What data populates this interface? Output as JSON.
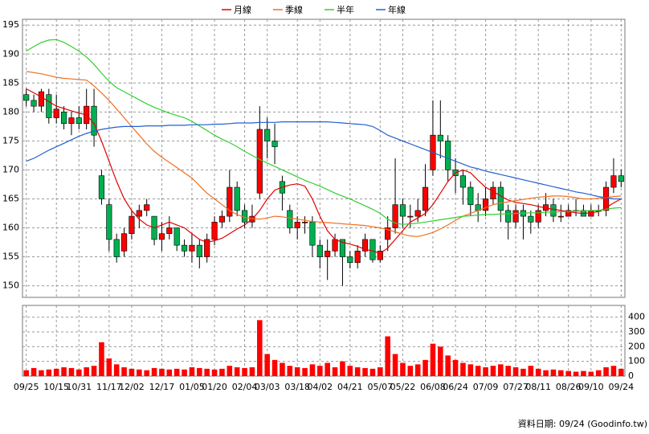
{
  "chart_data": {
    "type": "candlestick",
    "legend": "top",
    "grid": true,
    "categories": [
      "09/25",
      null,
      null,
      null,
      "10/15",
      null,
      null,
      "10/31",
      null,
      null,
      null,
      "11/17",
      null,
      null,
      "12/02",
      null,
      null,
      null,
      "12/17",
      null,
      null,
      null,
      "01/05",
      null,
      null,
      "01/20",
      null,
      null,
      null,
      "02/04",
      null,
      null,
      "03/03",
      null,
      null,
      null,
      "03/18",
      null,
      null,
      "04/02",
      null,
      null,
      null,
      "04/21",
      null,
      null,
      null,
      "05/07",
      null,
      null,
      "05/22",
      null,
      null,
      null,
      "06/08",
      null,
      null,
      "06/24",
      null,
      null,
      null,
      "07/09",
      null,
      null,
      null,
      "07/27",
      null,
      null,
      "08/11",
      null,
      null,
      null,
      "08/26",
      null,
      null,
      "09/10",
      null,
      null,
      null,
      "09/24"
    ],
    "open": [
      183,
      182,
      181,
      183,
      179,
      180,
      178,
      179,
      178,
      181,
      169,
      164,
      158,
      156,
      159,
      162,
      163,
      162,
      158,
      159,
      160,
      157,
      156,
      157,
      155,
      158,
      161,
      162,
      167,
      163,
      161,
      166,
      177,
      175,
      168,
      163,
      160,
      161,
      161,
      157,
      155,
      156,
      158,
      155,
      154,
      156,
      158,
      154.5,
      158,
      160,
      164,
      162,
      162,
      163,
      170,
      176,
      175,
      170,
      169,
      167,
      164,
      163,
      165,
      167,
      163,
      161,
      163,
      162,
      161,
      163,
      164,
      162,
      162,
      163,
      163,
      162,
      163,
      163,
      167,
      169
    ],
    "high": [
      184,
      183,
      184,
      184,
      183,
      181,
      180,
      181,
      184,
      184,
      170,
      165,
      159,
      160,
      163,
      164,
      165,
      162,
      161,
      162,
      160,
      158,
      159,
      158,
      159,
      162,
      163,
      170,
      168,
      164,
      164,
      181,
      179,
      178,
      169,
      164,
      162,
      162,
      162,
      158,
      158,
      159,
      158,
      156,
      157,
      159,
      158,
      157,
      162,
      172,
      165,
      164,
      165,
      171,
      182,
      182,
      176,
      172,
      170,
      168,
      166,
      167,
      168,
      168,
      164,
      164,
      164,
      163,
      164,
      166,
      165,
      164,
      164,
      165,
      164,
      164,
      164,
      168,
      172,
      170
    ],
    "low": [
      181,
      180,
      180,
      178,
      178,
      177,
      176,
      177,
      177,
      174,
      164,
      156,
      154,
      155,
      158,
      160,
      162,
      157,
      156,
      158,
      156,
      155,
      154,
      153,
      154,
      157,
      160,
      161,
      162,
      160,
      160,
      165,
      172,
      171,
      163,
      159,
      158,
      159,
      155,
      153,
      151,
      155,
      150,
      153,
      153,
      155,
      154,
      154,
      156,
      159,
      160,
      160,
      161,
      162,
      169,
      172,
      168,
      166,
      164,
      162,
      161,
      162,
      164,
      161,
      158,
      160,
      158,
      159,
      160,
      162,
      161,
      161,
      162,
      162,
      162,
      162,
      162,
      162,
      166,
      167
    ],
    "close": [
      182,
      181,
      183.5,
      179,
      180.5,
      178,
      179,
      178,
      181,
      176,
      165,
      158,
      155,
      159,
      162,
      163,
      164,
      158,
      159,
      160,
      157,
      156,
      157,
      155,
      158,
      161,
      162,
      167,
      163,
      161,
      162,
      177,
      175,
      174,
      166,
      160,
      161,
      161,
      157,
      155,
      156,
      158,
      155,
      154,
      156,
      158,
      154.5,
      156,
      160,
      164,
      162,
      162,
      163,
      167,
      176,
      175,
      170,
      169,
      167,
      164,
      163,
      165,
      167,
      163,
      161,
      163,
      162,
      161,
      163,
      164,
      162,
      162,
      163,
      163,
      162,
      163,
      163,
      167,
      169,
      168
    ],
    "up_color": "#ff0000",
    "down_color": "#00b050",
    "ylim": [
      148,
      196
    ],
    "yticks": [
      150,
      155,
      160,
      165,
      170,
      175,
      180,
      185,
      190,
      195
    ],
    "series": [
      {
        "name": "月線",
        "color": "#e00000",
        "values": [
          184,
          183.3,
          182.6,
          181.8,
          181,
          180.6,
          180.2,
          179.8,
          179.5,
          178,
          175,
          171.5,
          168,
          165,
          163,
          161.5,
          160.5,
          160,
          160.5,
          161,
          160.5,
          160,
          159,
          158,
          157.5,
          157.8,
          158.2,
          159,
          159.8,
          160.5,
          161.5,
          163,
          165,
          166.5,
          167,
          167.4,
          167.6,
          167.2,
          165,
          162,
          159.5,
          158,
          157.5,
          157.2,
          156.8,
          156.3,
          156,
          155.6,
          156.5,
          158,
          159.5,
          161,
          161.7,
          162.5,
          164,
          166,
          168,
          169.5,
          170,
          169.5,
          168.2,
          167,
          166.3,
          165.5,
          164.8,
          164.4,
          164.2,
          164,
          163.7,
          163.4,
          163.2,
          163,
          162.8,
          162.6,
          162.5,
          162.6,
          162.8,
          163.5,
          164.3,
          165
        ]
      },
      {
        "name": "季線",
        "color": "#f07020",
        "values": [
          187,
          186.8,
          186.6,
          186.3,
          186,
          185.8,
          185.7,
          185.6,
          185.5,
          184.5,
          183.3,
          182,
          180.5,
          179,
          177.5,
          176,
          174.5,
          173.2,
          172.2,
          171.3,
          170.4,
          169.5,
          168.6,
          167.3,
          166,
          165,
          164,
          163,
          162.3,
          161.8,
          161.6,
          161.5,
          161.7,
          162,
          161.9,
          161.7,
          161.5,
          161.3,
          161.1,
          161,
          160.9,
          160.8,
          160.7,
          160.6,
          160.5,
          160.4,
          160.2,
          160,
          159.7,
          159.3,
          158.9,
          158.6,
          158.5,
          158.8,
          159.2,
          159.8,
          160.5,
          161.3,
          162,
          162.5,
          163,
          163.5,
          164,
          164.3,
          164.5,
          164.7,
          164.9,
          165.1,
          165.3,
          165.4,
          165.5,
          165.5,
          165.4,
          165.2,
          165,
          165,
          165.1,
          165.2,
          165.4,
          165.5
        ]
      },
      {
        "name": "半年",
        "color": "#30d030",
        "values": [
          190.5,
          191.3,
          192,
          192.4,
          192.5,
          192,
          191.3,
          190.5,
          189.5,
          188.2,
          186.7,
          185.3,
          184.2,
          183.5,
          182.8,
          182.1,
          181.4,
          180.8,
          180.3,
          179.8,
          179.4,
          179,
          178.4,
          177.6,
          176.8,
          176,
          175.3,
          174.7,
          174,
          173.2,
          172.5,
          171.8,
          171.2,
          170.6,
          170,
          169.4,
          168.8,
          168.2,
          167.7,
          167.2,
          166.6,
          166,
          165.5,
          165,
          164.4,
          163.8,
          163.2,
          162.5,
          161.5,
          160.8,
          160.6,
          160.7,
          160.8,
          161,
          161.2,
          161.4,
          161.6,
          161.8,
          162,
          162.1,
          162.2,
          162.3,
          162.3,
          162.4,
          162.4,
          162.5,
          162.5,
          162.6,
          162.6,
          162.7,
          162.7,
          162.8,
          162.8,
          162.9,
          162.9,
          163,
          163,
          163.2,
          163.4,
          163.5
        ]
      },
      {
        "name": "年線",
        "color": "#2060d0",
        "values": [
          171.5,
          172,
          172.7,
          173.4,
          174,
          174.6,
          175.2,
          175.8,
          176.3,
          176.7,
          177,
          177.2,
          177.4,
          177.5,
          177.5,
          177.5,
          177.6,
          177.6,
          177.6,
          177.7,
          177.7,
          177.7,
          177.8,
          177.8,
          177.8,
          177.9,
          177.9,
          178,
          178.1,
          178.1,
          178.1,
          178.2,
          178.2,
          178.2,
          178.3,
          178.3,
          178.3,
          178.3,
          178.3,
          178.3,
          178.3,
          178.2,
          178.1,
          178,
          177.9,
          177.8,
          177.5,
          176.8,
          176,
          175.5,
          175,
          174.5,
          174,
          173.5,
          173,
          172.5,
          172,
          171.5,
          171,
          170.5,
          170.2,
          169.8,
          169.5,
          169.2,
          168.9,
          168.6,
          168.3,
          168,
          167.7,
          167.4,
          167.1,
          166.8,
          166.5,
          166.2,
          166,
          165.7,
          165.4,
          165.2,
          165,
          165
        ]
      }
    ],
    "volume": {
      "color": "#ff0000",
      "ylim": [
        0,
        480
      ],
      "yticks": [
        0,
        100,
        200,
        300,
        400
      ],
      "values": [
        40,
        55,
        40,
        45,
        50,
        60,
        55,
        45,
        60,
        70,
        230,
        120,
        80,
        60,
        50,
        45,
        40,
        55,
        50,
        45,
        50,
        45,
        60,
        55,
        50,
        45,
        50,
        70,
        60,
        55,
        60,
        380,
        150,
        110,
        90,
        70,
        60,
        55,
        80,
        70,
        90,
        60,
        100,
        70,
        60,
        55,
        50,
        60,
        270,
        150,
        90,
        70,
        80,
        110,
        220,
        200,
        140,
        110,
        90,
        80,
        70,
        60,
        70,
        80,
        70,
        60,
        50,
        70,
        50,
        40,
        45,
        40,
        35,
        30,
        35,
        30,
        40,
        60,
        70,
        50
      ]
    }
  },
  "footer": "資料日期: 09/24 (Goodinfo.tw)"
}
